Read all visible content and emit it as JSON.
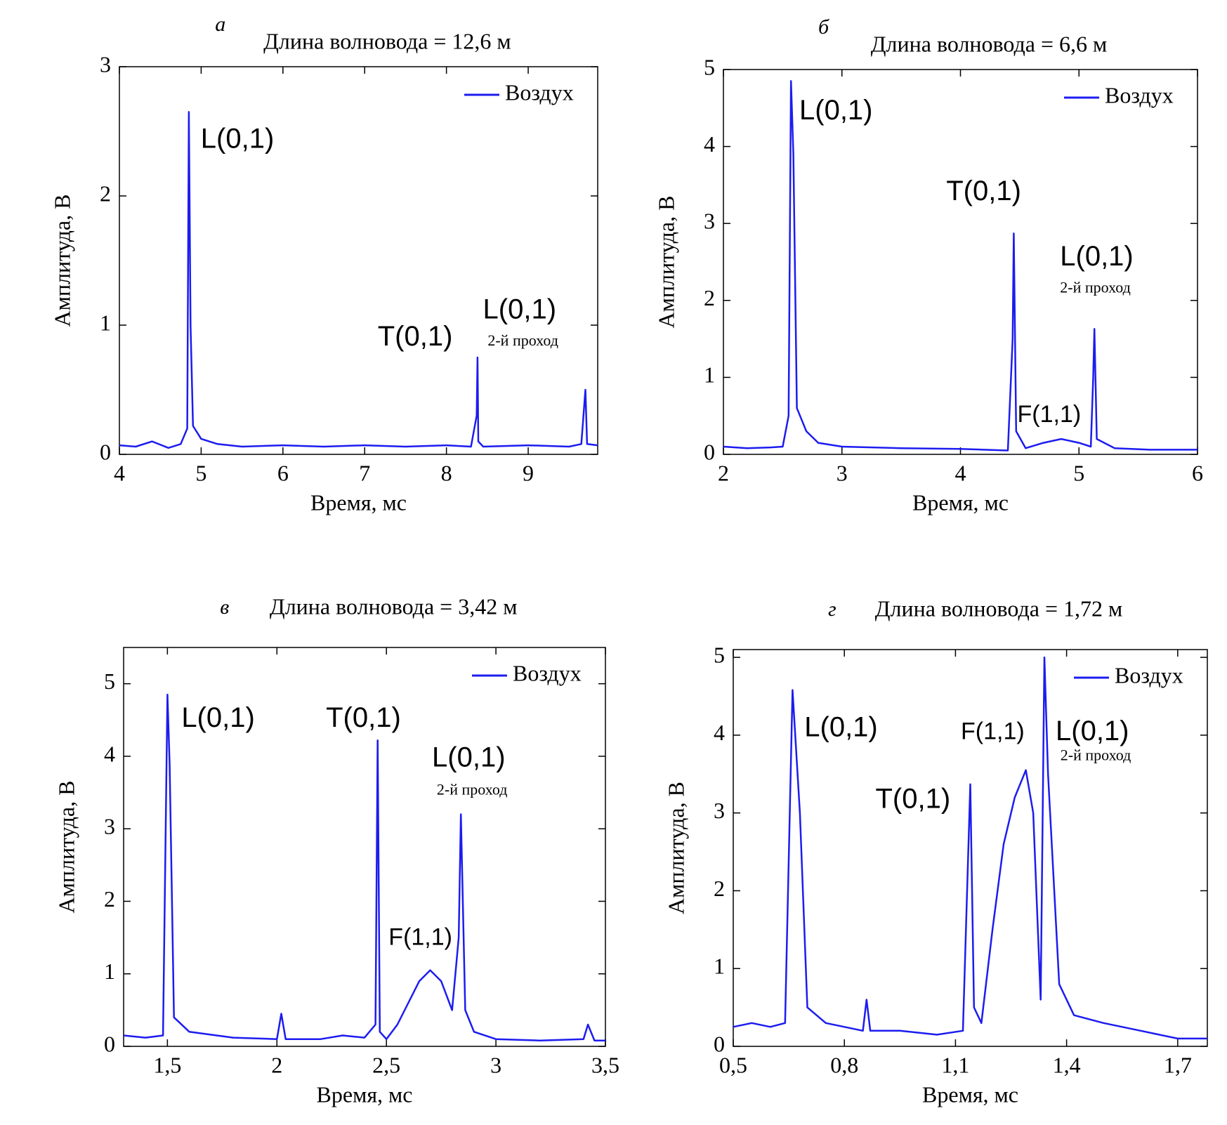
{
  "chart_data": [
    {
      "type": "line",
      "panel_label": "а",
      "title": "Длина волновода = 12,6 м",
      "xlabel": "Время, мс",
      "ylabel": "Амплитуда, В",
      "x": [
        4.0,
        4.2,
        4.4,
        4.6,
        4.75,
        4.83,
        4.85,
        4.87,
        4.9,
        5.0,
        5.2,
        5.5,
        6.0,
        6.5,
        7.0,
        7.5,
        8.0,
        8.3,
        8.37,
        8.38,
        8.39,
        8.45,
        9.0,
        9.5,
        9.65,
        9.7,
        9.72,
        9.85
      ],
      "series": [
        {
          "name": "Воздух",
          "color": "#1c1cf0",
          "values": [
            0.07,
            0.06,
            0.1,
            0.05,
            0.08,
            0.2,
            2.65,
            1.0,
            0.22,
            0.12,
            0.08,
            0.06,
            0.07,
            0.06,
            0.07,
            0.06,
            0.07,
            0.06,
            0.3,
            0.75,
            0.1,
            0.06,
            0.07,
            0.06,
            0.08,
            0.5,
            0.08,
            0.07
          ]
        }
      ],
      "xlim": [
        4,
        9.85
      ],
      "xticks": [
        4,
        5,
        6,
        7,
        8,
        9
      ],
      "ylim": [
        0,
        3
      ],
      "yticks": [
        0,
        1,
        2,
        3
      ],
      "legend": "upper right",
      "annotations": [
        "L(0,1)",
        "T(0,1)",
        "L(0,1)",
        "2-й проход"
      ]
    },
    {
      "type": "line",
      "panel_label": "б",
      "title": "Длина волновода = 6,6 м",
      "xlabel": "Время, мс",
      "ylabel": "Амплитуда, В",
      "x": [
        2.0,
        2.2,
        2.4,
        2.5,
        2.55,
        2.57,
        2.59,
        2.62,
        2.7,
        2.8,
        3.0,
        3.5,
        4.0,
        4.4,
        4.44,
        4.45,
        4.47,
        4.55,
        4.7,
        4.85,
        5.0,
        5.1,
        5.12,
        5.13,
        5.15,
        5.3,
        5.6,
        6.0
      ],
      "series": [
        {
          "name": "Воздух",
          "color": "#1c1cf0",
          "values": [
            0.1,
            0.08,
            0.09,
            0.1,
            0.5,
            4.85,
            3.9,
            0.6,
            0.3,
            0.15,
            0.1,
            0.08,
            0.07,
            0.05,
            1.5,
            2.87,
            0.3,
            0.08,
            0.15,
            0.2,
            0.15,
            0.1,
            1.0,
            1.63,
            0.2,
            0.08,
            0.06,
            0.06
          ]
        }
      ],
      "xlim": [
        2,
        6
      ],
      "xticks": [
        2,
        3,
        4,
        5,
        6
      ],
      "ylim": [
        0,
        5
      ],
      "yticks": [
        0,
        1,
        2,
        3,
        4,
        5
      ],
      "legend": "upper right",
      "annotations": [
        "L(0,1)",
        "T(0,1)",
        "L(0,1)",
        "2-й проход",
        "F(1,1)"
      ]
    },
    {
      "type": "line",
      "panel_label": "в",
      "title": "Длина волновода = 3,42 м",
      "xlabel": "Время, мс",
      "ylabel": "Амплитуда, В",
      "x": [
        1.3,
        1.4,
        1.48,
        1.5,
        1.51,
        1.53,
        1.6,
        1.8,
        2.0,
        2.02,
        2.04,
        2.2,
        2.3,
        2.4,
        2.45,
        2.46,
        2.47,
        2.5,
        2.55,
        2.6,
        2.65,
        2.7,
        2.75,
        2.8,
        2.83,
        2.84,
        2.86,
        2.9,
        3.0,
        3.2,
        3.4,
        3.42,
        3.45,
        3.5
      ],
      "series": [
        {
          "name": "Воздух",
          "color": "#1c1cf0",
          "values": [
            0.15,
            0.12,
            0.15,
            4.85,
            3.9,
            0.4,
            0.2,
            0.12,
            0.1,
            0.45,
            0.1,
            0.1,
            0.15,
            0.12,
            0.3,
            4.22,
            0.2,
            0.1,
            0.3,
            0.6,
            0.9,
            1.05,
            0.9,
            0.5,
            1.5,
            3.2,
            0.5,
            0.2,
            0.1,
            0.08,
            0.1,
            0.3,
            0.08,
            0.08
          ]
        }
      ],
      "xlim": [
        1.3,
        3.5
      ],
      "xticks": [
        {
          "value": 1.5,
          "label": "1,5"
        },
        2,
        {
          "value": 2.5,
          "label": "2,5"
        },
        3,
        {
          "value": 3.5,
          "label": "3,5"
        }
      ],
      "ylim": [
        0,
        5.5
      ],
      "yticks": [
        0,
        1,
        2,
        3,
        4,
        5
      ],
      "legend": "upper right",
      "annotations": [
        "L(0,1)",
        "T(0,1)",
        "L(0,1)",
        "2-й проход",
        "F(1,1)"
      ]
    },
    {
      "type": "line",
      "panel_label": "г",
      "title": "Длина волновода = 1,72 м",
      "xlabel": "Время, мс",
      "ylabel": "Амплитуда, В",
      "x": [
        0.5,
        0.55,
        0.6,
        0.64,
        0.66,
        0.68,
        0.7,
        0.75,
        0.8,
        0.85,
        0.86,
        0.87,
        0.95,
        1.05,
        1.12,
        1.14,
        1.15,
        1.17,
        1.2,
        1.23,
        1.26,
        1.29,
        1.31,
        1.33,
        1.34,
        1.35,
        1.38,
        1.42,
        1.5,
        1.6,
        1.7,
        1.78
      ],
      "series": [
        {
          "name": "Воздух",
          "color": "#1c1cf0",
          "values": [
            0.25,
            0.3,
            0.25,
            0.3,
            4.58,
            3.0,
            0.5,
            0.3,
            0.25,
            0.2,
            0.6,
            0.2,
            0.2,
            0.15,
            0.2,
            3.37,
            0.5,
            0.3,
            1.5,
            2.6,
            3.2,
            3.55,
            3.0,
            0.6,
            5.0,
            3.5,
            0.8,
            0.4,
            0.3,
            0.2,
            0.1,
            0.1
          ]
        }
      ],
      "xlim": [
        0.5,
        1.78
      ],
      "xticks": [
        {
          "value": 0.5,
          "label": "0,5"
        },
        {
          "value": 0.8,
          "label": "0,8"
        },
        {
          "value": 1.1,
          "label": "1,1"
        },
        {
          "value": 1.4,
          "label": "1,4"
        },
        {
          "value": 1.7,
          "label": "1,7"
        }
      ],
      "ylim": [
        0,
        5.1
      ],
      "yticks": [
        0,
        1,
        2,
        3,
        4,
        5
      ],
      "legend": "upper right",
      "annotations": [
        "L(0,1)",
        "F(1,1)",
        "T(0,1)",
        "L(0,1)",
        "2-й проход"
      ]
    }
  ]
}
